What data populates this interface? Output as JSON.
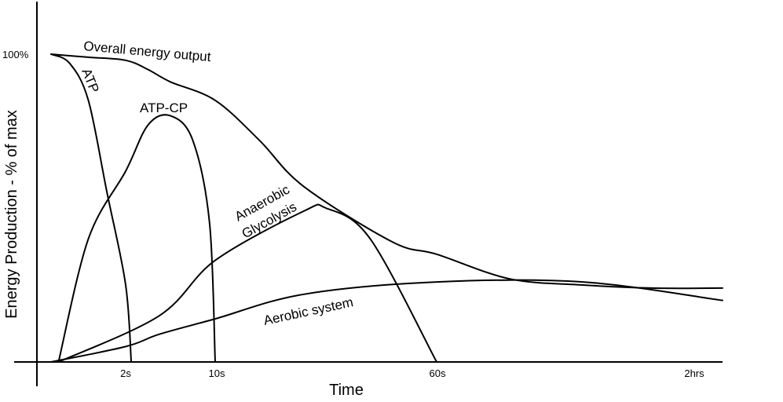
{
  "chart_data": {
    "type": "line",
    "title": "",
    "xlabel": "Time",
    "ylabel": "Energy Production - % of max",
    "x_tick_labels": [
      "2s",
      "10s",
      "60s",
      "2hrs"
    ],
    "y_tick_labels": [
      "100%"
    ],
    "ylim": [
      0,
      100
    ],
    "grid": false,
    "legend": "none (series labelled directly on curves)",
    "series": [
      {
        "name": "Overall energy output",
        "points": [
          [
            0,
            100
          ],
          [
            1,
            99
          ],
          [
            2,
            98
          ],
          [
            4,
            95
          ],
          [
            6,
            91
          ],
          [
            10,
            85
          ],
          [
            20,
            72
          ],
          [
            30,
            57
          ],
          [
            50,
            39
          ],
          [
            60,
            35
          ],
          [
            90,
            27
          ],
          [
            120,
            25
          ],
          [
            180,
            24
          ],
          [
            240,
            24
          ]
        ]
      },
      {
        "name": "ATP",
        "points": [
          [
            0,
            100
          ],
          [
            0.5,
            97
          ],
          [
            1,
            85
          ],
          [
            1.5,
            55
          ],
          [
            2,
            25
          ],
          [
            2.5,
            0
          ]
        ]
      },
      {
        "name": "ATP-CP",
        "points": [
          [
            0.2,
            0
          ],
          [
            1,
            40
          ],
          [
            2,
            62
          ],
          [
            4,
            77
          ],
          [
            6,
            80
          ],
          [
            8,
            72
          ],
          [
            9.5,
            45
          ],
          [
            10,
            0
          ]
        ]
      },
      {
        "name": "Anaerobic Glycolysis",
        "points": [
          [
            0.2,
            0
          ],
          [
            5,
            15
          ],
          [
            10,
            33
          ],
          [
            30,
            49
          ],
          [
            35,
            50
          ],
          [
            45,
            40
          ],
          [
            60,
            0
          ]
        ]
      },
      {
        "name": "Aerobic system",
        "points": [
          [
            0,
            0
          ],
          [
            2,
            5
          ],
          [
            5,
            9
          ],
          [
            10,
            14
          ],
          [
            30,
            22
          ],
          [
            60,
            26
          ],
          [
            120,
            26
          ],
          [
            240,
            20
          ]
        ]
      }
    ]
  }
}
